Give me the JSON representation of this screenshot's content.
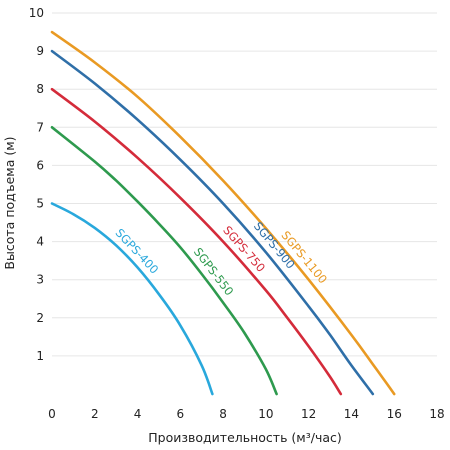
{
  "chart_data": {
    "type": "line",
    "title": "",
    "xlabel": "Производительность (м³/час)",
    "ylabel": "Высота подъема (м)",
    "xlim": [
      0,
      18
    ],
    "ylim": [
      0,
      10
    ],
    "x_ticks": [
      "0",
      "2",
      "4",
      "6",
      "8",
      "10",
      "12",
      "14",
      "16",
      "18"
    ],
    "y_ticks": [
      "1",
      "2",
      "3",
      "4",
      "5",
      "6",
      "7",
      "8",
      "9",
      "10"
    ],
    "grid": "horizontal",
    "legend": "inline labels along curves",
    "series": [
      {
        "name": "SGPS-400",
        "color": "#29a8dc",
        "x": [
          0,
          1,
          2,
          3,
          4,
          5,
          6,
          7,
          7.5
        ],
        "y": [
          5,
          4.72,
          4.36,
          3.9,
          3.32,
          2.62,
          1.8,
          0.75,
          0
        ]
      },
      {
        "name": "SGPS-550",
        "color": "#2e9a4e",
        "x": [
          0,
          2,
          3,
          4,
          5,
          6,
          7,
          8,
          9,
          10,
          10.5
        ],
        "y": [
          7,
          6.1,
          5.6,
          5.05,
          4.47,
          3.85,
          3.15,
          2.4,
          1.6,
          0.65,
          0
        ]
      },
      {
        "name": "SGPS-750",
        "color": "#d42b3a",
        "x": [
          0,
          2,
          4,
          6,
          8,
          10,
          11,
          12,
          13,
          13.5
        ],
        "y": [
          8,
          7.15,
          6.2,
          5.15,
          4.0,
          2.72,
          2.0,
          1.25,
          0.45,
          0
        ]
      },
      {
        "name": "SGPS-900",
        "color": "#2f6fa8",
        "x": [
          0,
          2,
          4,
          6,
          8,
          10,
          12,
          13,
          14,
          15
        ],
        "y": [
          9,
          8.15,
          7.2,
          6.15,
          5.0,
          3.72,
          2.3,
          1.55,
          0.75,
          0
        ]
      },
      {
        "name": "SGPS-1100",
        "color": "#e99a23",
        "x": [
          0,
          2,
          4,
          6,
          8,
          10,
          12,
          14,
          15,
          16
        ],
        "y": [
          9.5,
          8.7,
          7.8,
          6.75,
          5.6,
          4.35,
          3.0,
          1.55,
          0.78,
          0
        ]
      }
    ]
  }
}
